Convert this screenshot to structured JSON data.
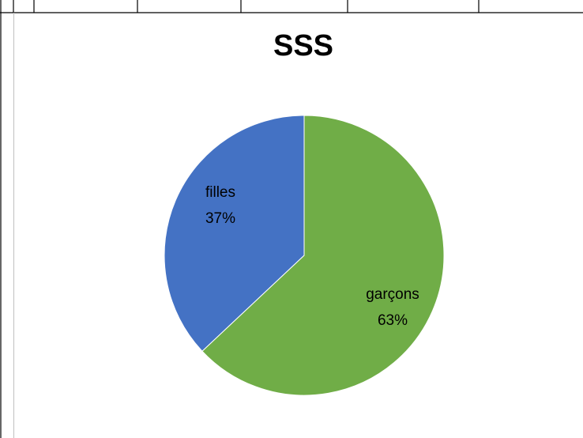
{
  "chart_data": {
    "type": "pie",
    "title": "SSS",
    "categories": [
      "garçons",
      "filles"
    ],
    "values": [
      63,
      37
    ],
    "slices": [
      {
        "name": "garçons",
        "value": 63,
        "label": "garçons",
        "percent_label": "63%",
        "color": "#70ad47"
      },
      {
        "name": "filles",
        "value": 37,
        "label": "filles",
        "percent_label": "37%",
        "color": "#4472c4"
      }
    ],
    "start_angle": "12 o'clock, clockwise",
    "legend": "none"
  }
}
